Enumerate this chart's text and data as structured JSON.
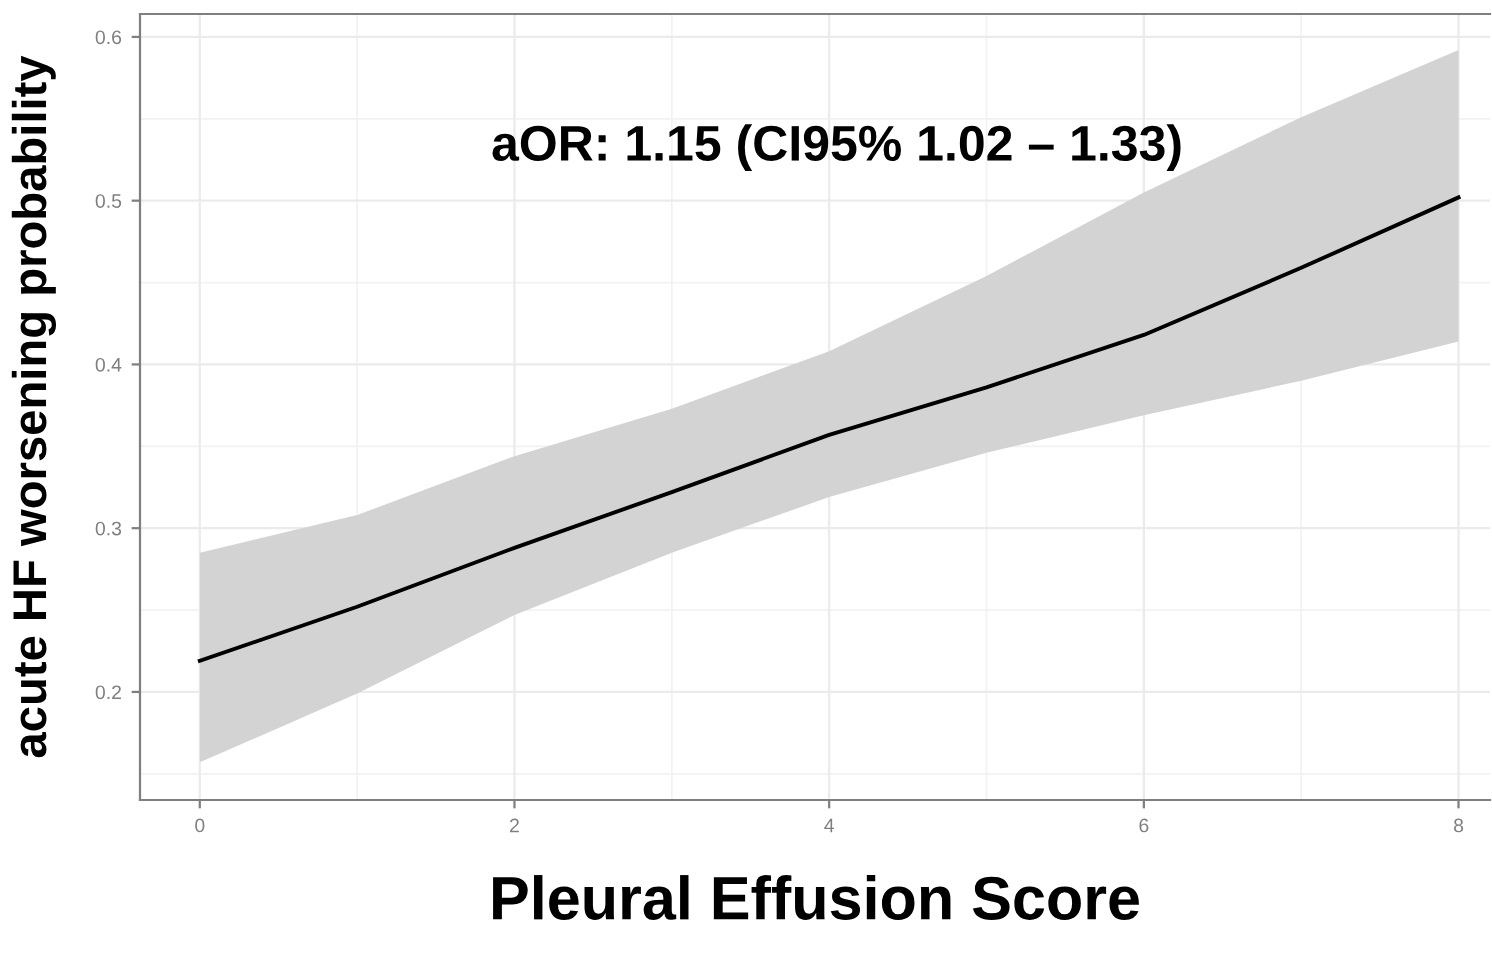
{
  "chart_data": {
    "type": "line",
    "xlabel": "Pleural Effusion Score",
    "ylabel": "acute HF worsening probability",
    "annotations": [
      "aOR: 1.15 (CI95% 1.02 – 1.33)"
    ],
    "x": [
      0,
      1,
      2,
      3,
      4,
      5,
      6,
      7,
      8
    ],
    "series": [
      {
        "color": "#000000",
        "values": [
          0.219,
          0.252,
          0.288,
          0.322,
          0.357,
          0.386,
          0.418,
          0.459,
          0.502
        ],
        "lower": [
          0.157,
          0.199,
          0.247,
          0.285,
          0.319,
          0.346,
          0.369,
          0.39,
          0.414
        ],
        "upper": [
          0.285,
          0.308,
          0.344,
          0.373,
          0.408,
          0.454,
          0.505,
          0.551,
          0.592
        ]
      }
    ],
    "xlim": [
      -0.38,
      8.2
    ],
    "ylim": [
      0.134,
      0.614
    ],
    "xticks": [
      0,
      2,
      4,
      6,
      8
    ],
    "yticks": [
      0.2,
      0.3,
      0.4,
      0.5,
      0.6
    ],
    "grid": true,
    "legend": false,
    "marker": "none",
    "line_style": "solid"
  }
}
